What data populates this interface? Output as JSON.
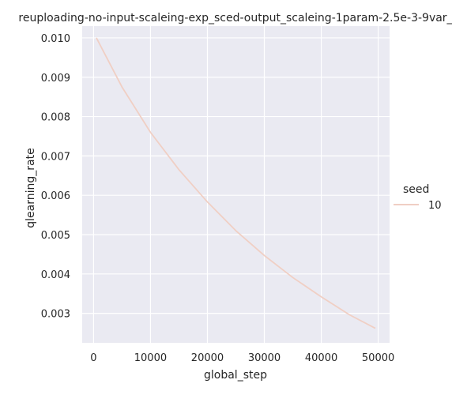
{
  "chart_data": {
    "type": "line",
    "title": "reuploading-no-input-scaleing-exp_sced-output_scaleing-1param-2.5e-3-9var_",
    "xlabel": "global_step",
    "ylabel": "qlearning_rate",
    "xlim": [
      -2000,
      52000
    ],
    "ylim": [
      0.00225,
      0.0103
    ],
    "x_ticks": [
      0,
      10000,
      20000,
      30000,
      40000,
      50000
    ],
    "x_tick_labels": [
      "0",
      "10000",
      "20000",
      "30000",
      "40000",
      "50000"
    ],
    "y_ticks": [
      0.003,
      0.004,
      0.005,
      0.006,
      0.007,
      0.008,
      0.009,
      0.01
    ],
    "y_tick_labels": [
      "0.003",
      "0.004",
      "0.005",
      "0.006",
      "0.007",
      "0.008",
      "0.009",
      "0.010"
    ],
    "grid": true,
    "background": "#eaeaf2",
    "legend": {
      "title": "seed",
      "placement": "right",
      "entries": [
        {
          "name": "10",
          "color": "#f0cfc4"
        }
      ]
    },
    "series": [
      {
        "name": "10",
        "color": "#f0cfc4",
        "x": [
          500,
          5000,
          10000,
          15000,
          20000,
          25000,
          30000,
          35000,
          40000,
          45000,
          49500
        ],
        "y": [
          0.01,
          0.00875,
          0.0076,
          0.00665,
          0.00583,
          0.0051,
          0.00447,
          0.00391,
          0.00342,
          0.00296,
          0.00262
        ]
      }
    ]
  }
}
